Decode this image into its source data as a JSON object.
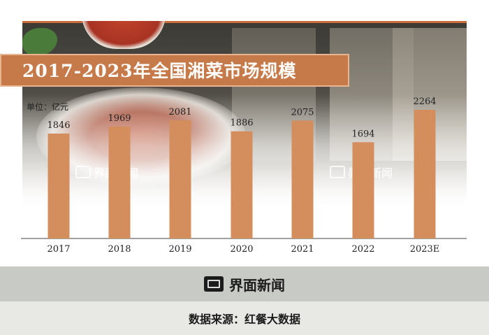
{
  "chart_data": {
    "type": "bar",
    "title": "2017-2023年全国湘菜市场规模",
    "unit_label": "单位：亿元",
    "categories": [
      "2017",
      "2018",
      "2019",
      "2020",
      "2021",
      "2022",
      "2023E"
    ],
    "values": [
      1846,
      1969,
      2081,
      1886,
      2075,
      1694,
      2264
    ],
    "value_labels": [
      "1846",
      "1969",
      "2081",
      "1886",
      "2075",
      "1694",
      "2264"
    ],
    "xlabel": "",
    "ylabel": "",
    "ylim": [
      0,
      2264
    ],
    "grid": false,
    "legend": "none",
    "bar_color": "#d48e5d"
  },
  "watermark": {
    "text": "界面新闻"
  },
  "footer": {
    "brand": "界面新闻",
    "source": "数据来源：红餐大数据"
  },
  "colors": {
    "banner": "#c77a49",
    "footer_band": "#c8cac5",
    "footer_bottom": "#e8e8e5"
  }
}
